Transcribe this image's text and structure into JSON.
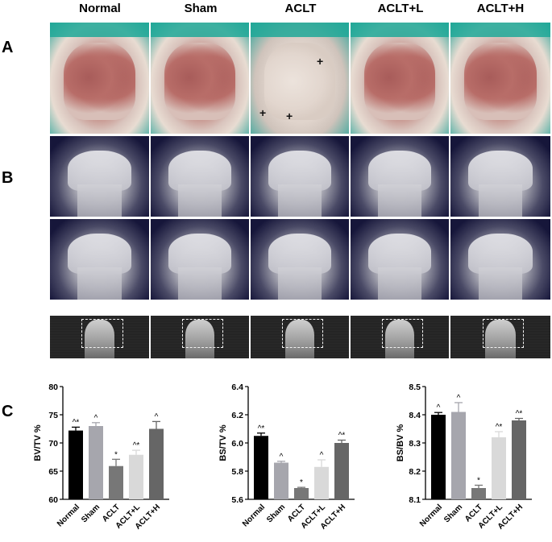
{
  "panels": {
    "a": "A",
    "b": "B",
    "c": "C"
  },
  "groups": [
    "Normal",
    "Sham",
    "ACLT",
    "ACLT+L",
    "ACLT+H"
  ],
  "markers": [
    "+",
    "+",
    "+"
  ],
  "colors": {
    "normal": "#000000",
    "sham": "#a6a6ad",
    "aclt": "#777777",
    "aclt_l": "#d9d9d9",
    "aclt_h": "#666666"
  },
  "chart_data": [
    {
      "type": "bar",
      "categories": [
        "Normal",
        "Sham",
        "ACLT",
        "ACLT+L",
        "ACLT+H"
      ],
      "values": [
        72.2,
        73.0,
        65.9,
        67.9,
        72.5
      ],
      "errors": [
        0.6,
        0.6,
        1.2,
        0.8,
        1.3
      ],
      "sig_labels": [
        "^*",
        "^",
        "*",
        "^*",
        "^"
      ],
      "ylabel": "BV/TV %",
      "ylim": [
        60,
        80
      ],
      "yticks": [
        60,
        65,
        70,
        75,
        80
      ],
      "tick_labels": [
        "60",
        "65",
        "70",
        "75",
        "80"
      ]
    },
    {
      "type": "bar",
      "categories": [
        "Normal",
        "Sham",
        "ACLT",
        "ACLT+L",
        "ACLT+H"
      ],
      "values": [
        6.05,
        5.86,
        5.68,
        5.83,
        6.0
      ],
      "errors": [
        0.02,
        0.01,
        0.005,
        0.05,
        0.02
      ],
      "sig_labels": [
        "^*",
        "^",
        "*",
        "^",
        "^*"
      ],
      "ylabel": "BS/TV %",
      "ylim": [
        5.6,
        6.4
      ],
      "yticks": [
        5.6,
        5.8,
        6.0,
        6.2,
        6.4
      ],
      "tick_labels": [
        "5.6",
        "5.8",
        "6.0",
        "6.2",
        "6.4"
      ]
    },
    {
      "type": "bar",
      "categories": [
        "Normal",
        "Sham",
        "ACLT",
        "ACLT+L",
        "ACLT+H"
      ],
      "values": [
        8.4,
        8.41,
        8.14,
        8.32,
        8.38
      ],
      "errors": [
        0.008,
        0.033,
        0.01,
        0.02,
        0.007
      ],
      "sig_labels": [
        "^",
        "^",
        "*",
        "^*",
        "^*"
      ],
      "ylabel": "BS/BV %",
      "ylim": [
        8.1,
        8.5
      ],
      "yticks": [
        8.1,
        8.2,
        8.3,
        8.4,
        8.5
      ],
      "tick_labels": [
        "8.1",
        "8.2",
        "8.3",
        "8.4",
        "8.5"
      ]
    }
  ]
}
